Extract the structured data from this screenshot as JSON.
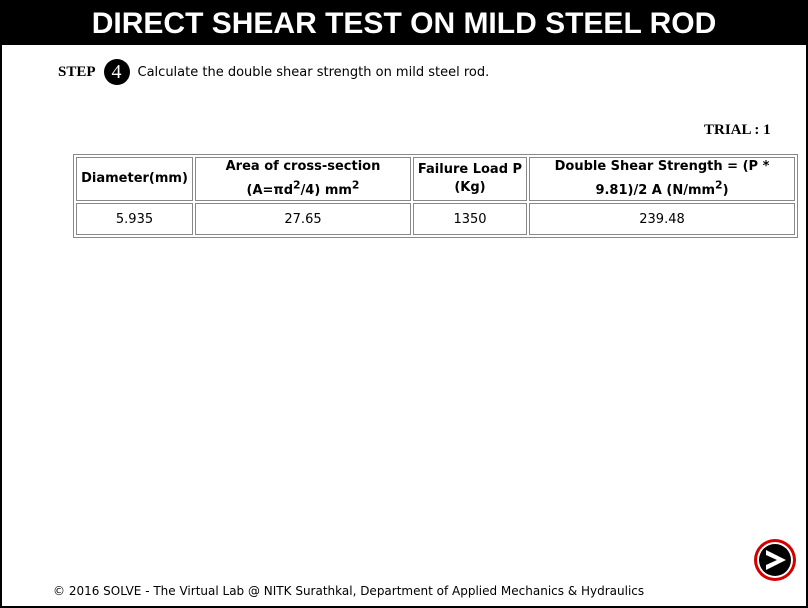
{
  "header": {
    "title": "DIRECT SHEAR TEST ON MILD STEEL ROD"
  },
  "step": {
    "label": "STEP",
    "number": "4",
    "instruction": "Calculate the double shear strength on mild steel rod."
  },
  "trial": {
    "label": "TRIAL : 1"
  },
  "table": {
    "headers": [
      {
        "text": "Diameter(mm)"
      },
      {
        "line1": "Area of cross-section",
        "line2_pre": "(A=πd",
        "line2_sup1": "2",
        "line2_mid": "/4) mm",
        "line2_sup2": "2"
      },
      {
        "line1": "Failure Load P",
        "line2": "(Kg)"
      },
      {
        "line1": "Double Shear Strength = (P *",
        "line2_pre": "9.81)/2 A (N/mm",
        "line2_sup": "2",
        "line2_post": ")"
      }
    ],
    "rows": [
      [
        "5.935",
        "27.65",
        "1350",
        "239.48"
      ]
    ]
  },
  "next_button": {
    "icon": "next-arrow-icon",
    "color_ring": "#d40000",
    "color_fill": "#000000"
  },
  "footer": {
    "text": "© 2016 SOLVE - The Virtual Lab @ NITK Surathkal, Department of Applied Mechanics & Hydraulics"
  }
}
